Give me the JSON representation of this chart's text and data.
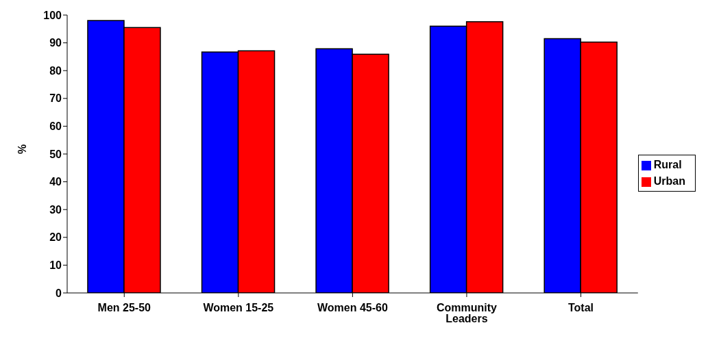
{
  "chart_data": {
    "type": "bar",
    "ylabel": "%",
    "categories": [
      "Men 25-50",
      "Women 15-25",
      "Women 45-60",
      "Community Leaders",
      "Total"
    ],
    "series": [
      {
        "name": "Rural",
        "color": "#0000ff",
        "values": [
          98,
          86.7,
          87.9,
          96,
          91.5
        ]
      },
      {
        "name": "Urban",
        "color": "#ff0000",
        "values": [
          95.5,
          87.1,
          85.9,
          97.6,
          90.3
        ]
      }
    ],
    "ylim": [
      0,
      100
    ],
    "yticks": [
      0,
      10,
      20,
      30,
      40,
      50,
      60,
      70,
      80,
      90,
      100
    ],
    "legend": "right"
  }
}
